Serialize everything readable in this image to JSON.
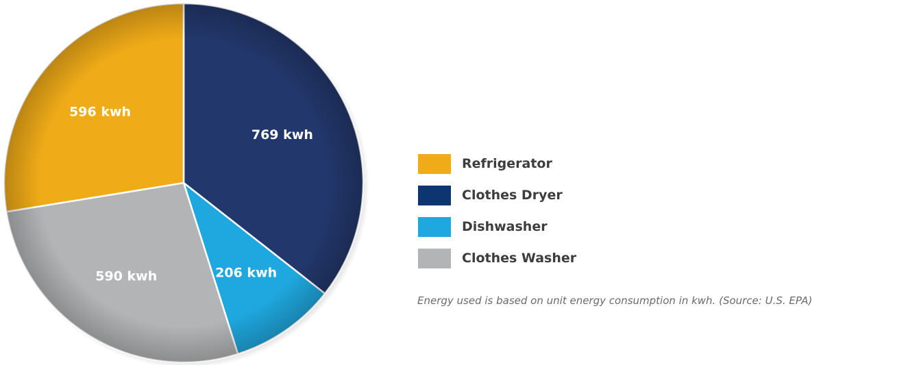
{
  "chart_data": {
    "type": "pie",
    "title": "",
    "slices": [
      {
        "label": "Clothes Dryer",
        "value": 769,
        "value_label": "769 kwh",
        "color": "#22376b"
      },
      {
        "label": "Dishwasher",
        "value": 206,
        "value_label": "206 kwh",
        "color": "#1fa8df"
      },
      {
        "label": "Clothes Washer",
        "value": 590,
        "value_label": "590 kwh",
        "color": "#b3b4b5"
      },
      {
        "label": "Refrigerator",
        "value": 596,
        "value_label": "596 kwh",
        "color": "#f0ab18"
      }
    ],
    "start_angle": "12 o'clock",
    "direction": "clockwise",
    "legend_position": "right"
  },
  "legend": {
    "items": [
      {
        "label": "Refrigerator",
        "color": "#f0ab18"
      },
      {
        "label": "Clothes Dryer",
        "color": "#0d3570"
      },
      {
        "label": "Dishwasher",
        "color": "#1fa8df"
      },
      {
        "label": "Clothes Washer",
        "color": "#b3b4b5"
      }
    ]
  },
  "footnote": "Energy used is based on unit energy consumption in kwh. (Source: U.S. EPA)"
}
